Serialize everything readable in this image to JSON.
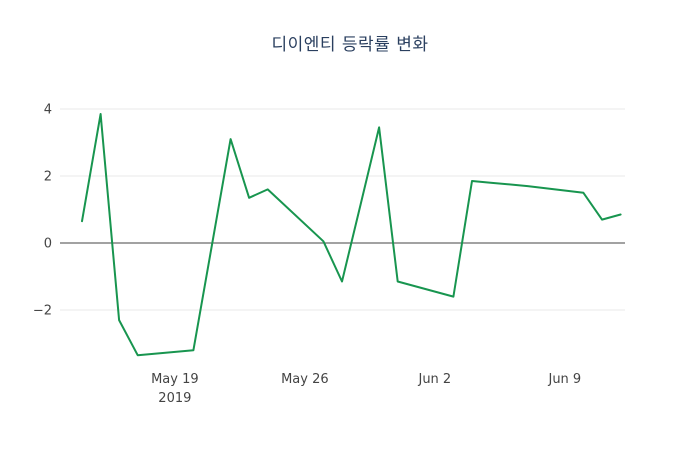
{
  "title": "디이엔티 등락률 변화",
  "chart_data": {
    "type": "line",
    "title": "디이엔티 등락률 변화",
    "xlabel": "",
    "ylabel": "",
    "legend": "none",
    "grid": "horizontal-light",
    "zero_line": true,
    "background": "#ffffff",
    "line_color": "#18954f",
    "grid_color": "#e9e9ea",
    "zero_line_color": "#444444",
    "tick_color": "#444444",
    "ylim": [
      -3.9,
      4.5
    ],
    "y_ticks": [
      {
        "label": "4",
        "value": 4
      },
      {
        "label": "2",
        "value": 2
      },
      {
        "label": "0",
        "value": 0
      },
      {
        "label": "−2",
        "value": -2
      }
    ],
    "x_ticks": [
      {
        "label": "May 19",
        "sublabel": "2019",
        "date": "2019-05-19"
      },
      {
        "label": "May 26",
        "sublabel": "",
        "date": "2019-05-26"
      },
      {
        "label": "Jun 2",
        "sublabel": "",
        "date": "2019-06-02"
      },
      {
        "label": "Jun 9",
        "sublabel": "",
        "date": "2019-06-09"
      }
    ],
    "series": [
      {
        "name": "등락률",
        "x": [
          "2019-05-14",
          "2019-05-15",
          "2019-05-16",
          "2019-05-17",
          "2019-05-20",
          "2019-05-21",
          "2019-05-22",
          "2019-05-23",
          "2019-05-24",
          "2019-05-27",
          "2019-05-28",
          "2019-05-29",
          "2019-05-30",
          "2019-05-31",
          "2019-06-03",
          "2019-06-04",
          "2019-06-05",
          "2019-06-07",
          "2019-06-10",
          "2019-06-11",
          "2019-06-12"
        ],
        "values": [
          0.65,
          3.85,
          -2.3,
          -3.35,
          -3.2,
          -0.05,
          3.1,
          1.35,
          1.6,
          0.05,
          -1.15,
          1.15,
          3.45,
          -1.15,
          -1.6,
          1.85,
          1.8,
          1.7,
          1.5,
          0.7,
          0.85
        ]
      }
    ]
  }
}
